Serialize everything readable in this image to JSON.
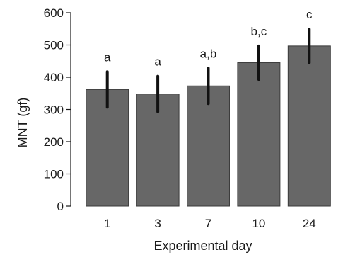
{
  "chart_data": {
    "type": "bar",
    "categories": [
      "1",
      "3",
      "7",
      "10",
      "24"
    ],
    "values": [
      362,
      348,
      373,
      445,
      497
    ],
    "error": [
      55,
      55,
      55,
      52,
      52
    ],
    "labels": [
      "a",
      "a",
      "a,b",
      "b,c",
      "c"
    ],
    "xlabel": "Experimental day",
    "ylabel": "MNT (gf)",
    "ylim": [
      0,
      600
    ],
    "yticks": [
      0,
      100,
      200,
      300,
      400,
      500,
      600
    ],
    "grid": false,
    "bar_color": "#676767",
    "error_color": "#111111"
  }
}
